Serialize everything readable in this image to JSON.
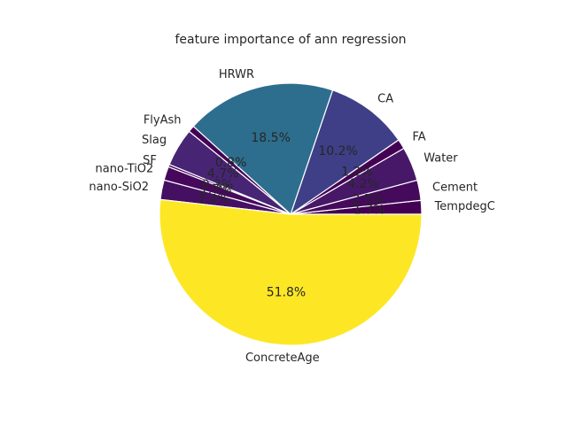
{
  "chart_data": {
    "type": "pie",
    "title": "feature importance of ann regression",
    "start_angle_deg": 0,
    "direction": "counterclockwise",
    "slices": [
      {
        "label": "TempdegC",
        "value": 1.7,
        "pct_label": "1.7%",
        "color": "#440154"
      },
      {
        "label": "Cement",
        "value": 2.5,
        "pct_label": "2.5%",
        "color": "#450a5c"
      },
      {
        "label": "Water",
        "value": 4.2,
        "pct_label": "4.2%",
        "color": "#471868"
      },
      {
        "label": "FA",
        "value": 1.2,
        "pct_label": "1.2%",
        "color": "#440154"
      },
      {
        "label": "CA",
        "value": 10.2,
        "pct_label": "10.2%",
        "color": "#3e3f87"
      },
      {
        "label": "HRWR",
        "value": 18.5,
        "pct_label": "18.5%",
        "color": "#2d6e8e"
      },
      {
        "label": "FlyAsh",
        "value": 0.8,
        "pct_label": "0.8%",
        "color": "#440154"
      },
      {
        "label": "Slag",
        "value": 4.7,
        "pct_label": "4.7%",
        "color": "#482475"
      },
      {
        "label": "SF",
        "value": 0.3,
        "pct_label": "0.3%",
        "color": "#440154"
      },
      {
        "label": "nano-TiO2",
        "value": 1.7,
        "pct_label": "1.7%",
        "color": "#46085c"
      },
      {
        "label": "nano-SiO2",
        "value": 2.4,
        "pct_label": "2.4%",
        "color": "#450f62"
      },
      {
        "label": "ConcreteAge",
        "value": 51.8,
        "pct_label": "51.8%",
        "color": "#fde725"
      }
    ]
  }
}
